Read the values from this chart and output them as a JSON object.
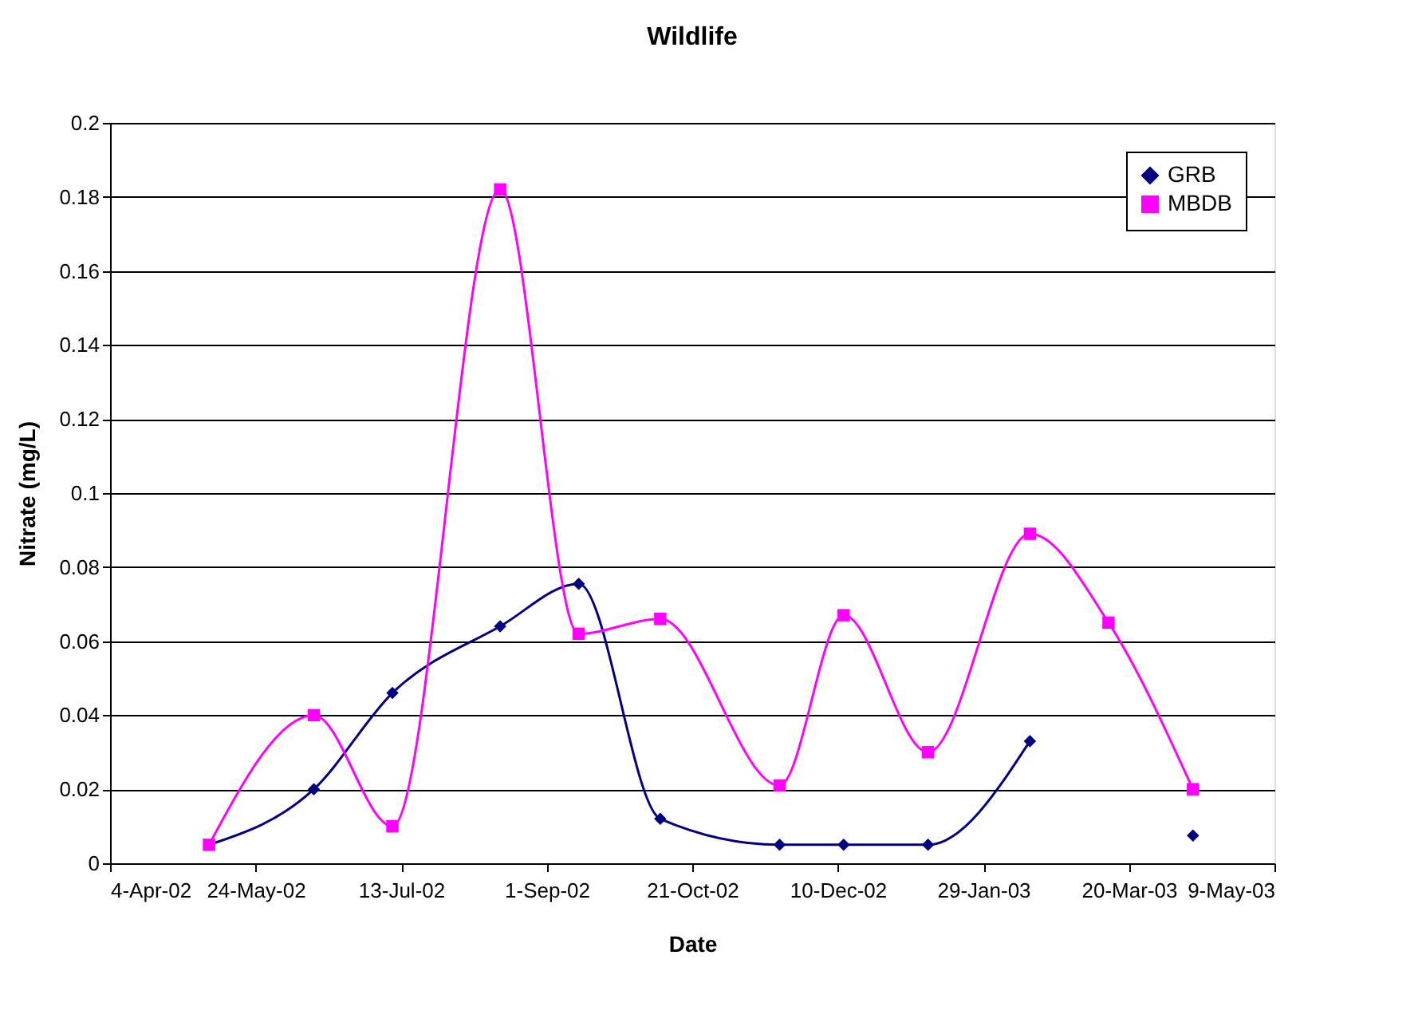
{
  "chart_data": {
    "type": "line",
    "title": "Wildlife",
    "xlabel": "Date",
    "ylabel": "Nitrate (mg/L)",
    "x": [
      "2002-05-08",
      "2002-06-13",
      "2002-07-10",
      "2002-08-16",
      "2002-09-12",
      "2002-10-10",
      "2002-11-20",
      "2002-12-12",
      "2003-01-10",
      "2003-02-14",
      "2003-03-13",
      "2003-04-11"
    ],
    "series": [
      {
        "name": "GRB",
        "color": "#000080",
        "marker": "diamond",
        "values": [
          0.005,
          0.02,
          0.046,
          0.064,
          0.0755,
          0.012,
          0.005,
          0.005,
          0.005,
          0.033,
          null,
          0.0075
        ]
      },
      {
        "name": "MBDB",
        "color": "#ff00ff",
        "marker": "square",
        "values": [
          0.005,
          0.04,
          0.01,
          0.182,
          0.062,
          0.066,
          0.021,
          0.067,
          0.03,
          0.089,
          0.065,
          0.02
        ]
      }
    ],
    "xlim": [
      "2002-04-04",
      "2003-05-09"
    ],
    "xticks": [
      {
        "value": "2002-04-04",
        "label": "4-Apr-02"
      },
      {
        "value": "2002-05-24",
        "label": "24-May-02"
      },
      {
        "value": "2002-07-13",
        "label": "13-Jul-02"
      },
      {
        "value": "2002-09-01",
        "label": "1-Sep-02"
      },
      {
        "value": "2002-10-21",
        "label": "21-Oct-02"
      },
      {
        "value": "2002-12-10",
        "label": "10-Dec-02"
      },
      {
        "value": "2003-01-29",
        "label": "29-Jan-03"
      },
      {
        "value": "2003-03-20",
        "label": "20-Mar-03"
      },
      {
        "value": "2003-05-09",
        "label": "9-May-03"
      }
    ],
    "ylim": [
      0,
      0.2
    ],
    "yticks": [
      0,
      0.02,
      0.04,
      0.06,
      0.08,
      0.1,
      0.12,
      0.14,
      0.16,
      0.18,
      0.2
    ],
    "grid": "y",
    "legend": "top right"
  }
}
